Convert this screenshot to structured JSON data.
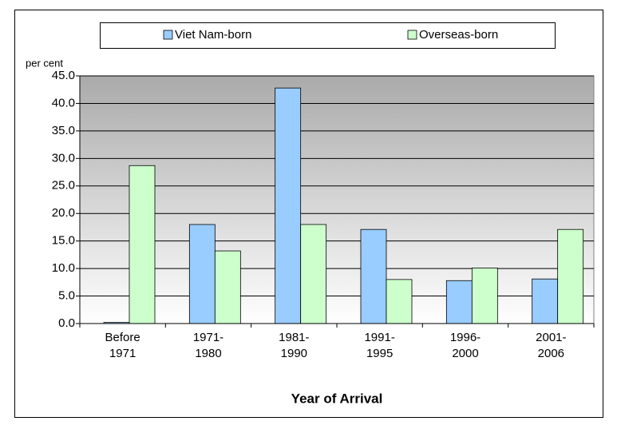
{
  "chart_data": {
    "type": "bar",
    "axis_label_y": "per cent",
    "x_axis_title": "Year of Arrival",
    "categories": [
      "Before 1971",
      "1971-1980",
      "1981-1990",
      "1991-1995",
      "1996-2000",
      "2001-2006"
    ],
    "series": [
      {
        "name": "Viet Nam-born",
        "color": "#99ccff",
        "values": [
          0.2,
          18.0,
          42.8,
          17.1,
          7.8,
          8.1
        ]
      },
      {
        "name": "Overseas-born",
        "color": "#ccffcc",
        "values": [
          28.7,
          13.2,
          18.0,
          8.0,
          10.1,
          17.1
        ]
      }
    ],
    "ylim": [
      0,
      45
    ],
    "yticks": [
      {
        "value": 0,
        "label": "0.0"
      },
      {
        "value": 5,
        "label": "5.0"
      },
      {
        "value": 10,
        "label": "10.0"
      },
      {
        "value": 15,
        "label": "15.0"
      },
      {
        "value": 20,
        "label": "20.0"
      },
      {
        "value": 25,
        "label": "25.0"
      },
      {
        "value": 30,
        "label": "30.0"
      },
      {
        "value": 35,
        "label": "35.0"
      },
      {
        "value": 40,
        "label": "40.0"
      },
      {
        "value": 45,
        "label": "45.0"
      }
    ],
    "grid": true,
    "legend": "top"
  }
}
